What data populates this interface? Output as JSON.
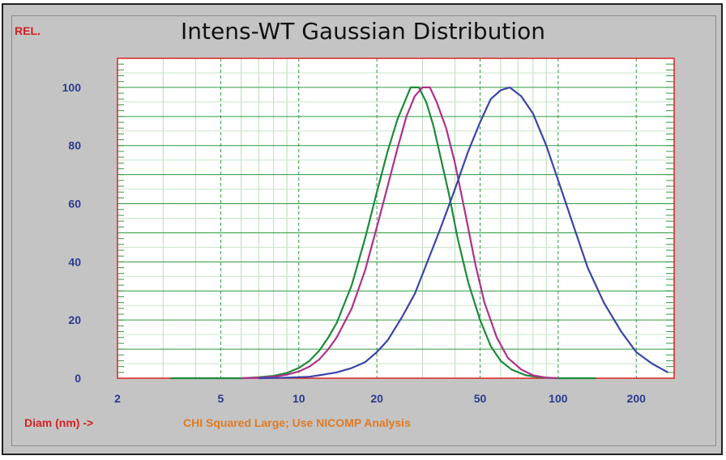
{
  "title": "Intens-WT Gaussian Distribution",
  "corner_label": "REL.",
  "xaxis_label": "Diam (nm) ->",
  "note": "CHI Squared Large; Use NICOMP Analysis",
  "chart_data": {
    "type": "line",
    "title": "Intens-WT Gaussian Distribution",
    "xlabel": "Diam (nm) ->",
    "ylabel": "REL.",
    "xscale": "log",
    "xlim": [
      2,
      280
    ],
    "ylim": [
      0,
      110
    ],
    "grid": true,
    "legend": "none",
    "x_ticks": [
      2,
      5,
      10,
      20,
      50,
      100,
      200
    ],
    "y_ticks": [
      0,
      20,
      40,
      60,
      80,
      100
    ],
    "x_tick_labels": [
      "2",
      "5",
      "10",
      "20",
      "50",
      "100",
      "200"
    ],
    "y_tick_labels": [
      "0",
      "20",
      "40",
      "60",
      "80",
      "100"
    ],
    "series": [
      {
        "color": "#1d8a3a",
        "x": [
          3.2,
          6,
          7,
          8,
          9,
          10,
          11,
          12,
          13,
          14,
          16,
          18,
          20,
          22,
          24,
          27,
          29,
          31,
          33,
          35,
          38,
          41,
          45,
          50,
          55,
          60,
          66,
          75,
          85,
          100,
          140
        ],
        "y": [
          0,
          0,
          0.3,
          0.8,
          1.8,
          3.5,
          6,
          9.5,
          14,
          19,
          32,
          48,
          64,
          78,
          89,
          100,
          100,
          95,
          87,
          77,
          63,
          48,
          33,
          20,
          11,
          6,
          3,
          1,
          0.3,
          0,
          0
        ]
      },
      {
        "color": "#b0308a",
        "x": [
          6,
          7,
          8,
          9,
          10,
          11,
          12,
          13,
          14,
          16,
          18,
          20,
          22,
          24,
          26,
          28,
          30,
          31,
          32,
          34,
          37,
          40,
          44,
          48,
          52,
          58,
          64,
          72,
          80,
          90,
          100
        ],
        "y": [
          0,
          0.2,
          0.5,
          1.2,
          2.3,
          4,
          6.5,
          10,
          14,
          24,
          37,
          52,
          66,
          79,
          90,
          97,
          100,
          100,
          100,
          95,
          86,
          74,
          56,
          39,
          26,
          14,
          7,
          3,
          1,
          0.2,
          0
        ]
      },
      {
        "color": "#3a44a8",
        "x": [
          7,
          9,
          11,
          12,
          14,
          16,
          18,
          20,
          22,
          25,
          28,
          31,
          35,
          40,
          45,
          50,
          55,
          60,
          65,
          72,
          80,
          90,
          100,
          115,
          130,
          150,
          175,
          200,
          230,
          265
        ],
        "y": [
          0,
          0.2,
          0.5,
          1,
          2,
          3.5,
          5.5,
          9,
          13,
          21,
          29,
          39,
          51,
          65,
          78,
          88,
          96,
          99,
          100,
          97,
          91,
          80,
          68,
          52,
          38,
          26,
          16,
          9,
          5,
          2
        ]
      }
    ]
  }
}
